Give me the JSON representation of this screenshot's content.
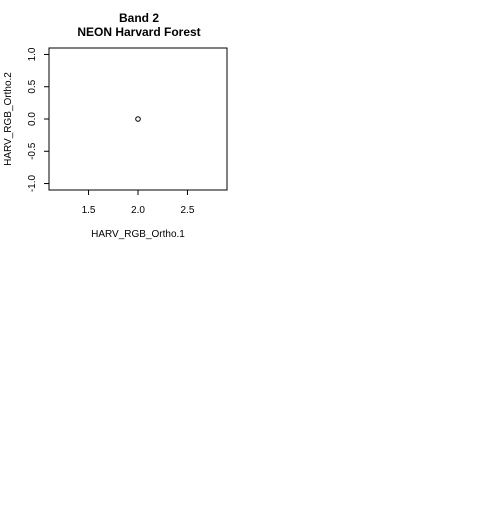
{
  "chart_data": {
    "type": "scatter",
    "title": "Band 2",
    "subtitle": "NEON Harvard Forest",
    "xlabel": "HARV_RGB_Ortho.1",
    "ylabel": "HARV_RGB_Ortho.2",
    "xlim": [
      1.1,
      2.9
    ],
    "ylim": [
      -1.1,
      1.1
    ],
    "x_ticks": [
      1.5,
      2.0,
      2.5
    ],
    "x_tick_labels": [
      "1.5",
      "2.0",
      "2.5"
    ],
    "y_ticks": [
      -1.0,
      -0.5,
      0.0,
      0.5,
      1.0
    ],
    "y_tick_labels": [
      "-1.0",
      "-0.5",
      "0.0",
      "0.5",
      "1.0"
    ],
    "grid": false,
    "series": [
      {
        "x": [
          2.0
        ],
        "y": [
          0.0
        ],
        "marker": "open-circle"
      }
    ],
    "colors": {
      "axis": "#000000",
      "marker": "#000000",
      "background": "#ffffff"
    }
  }
}
